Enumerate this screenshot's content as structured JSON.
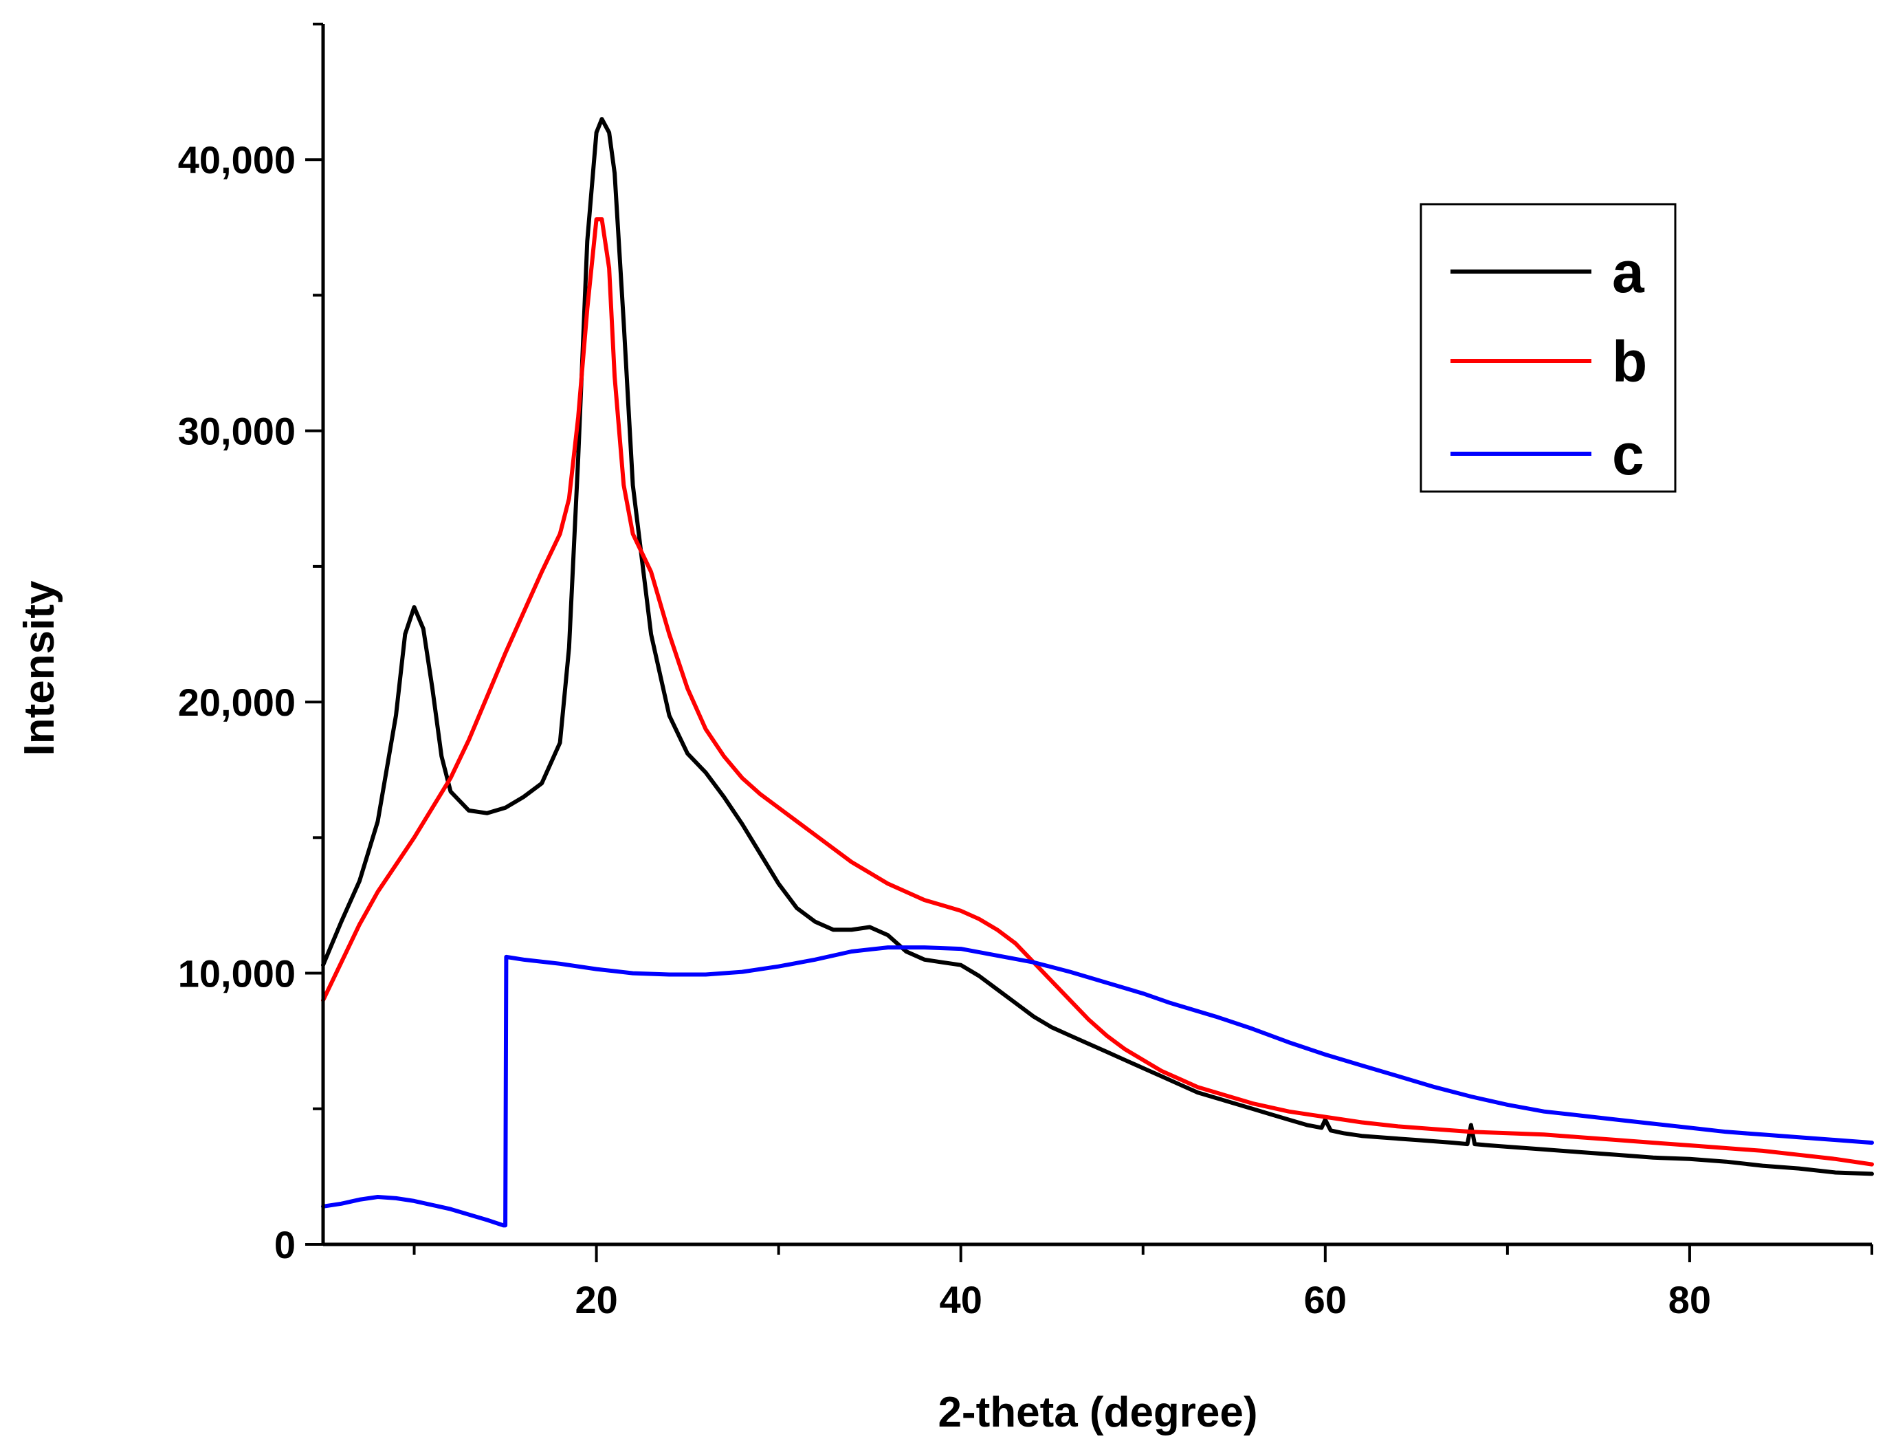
{
  "chart_data": {
    "type": "line",
    "title": "",
    "xlabel": "2-theta (degree)",
    "ylabel": "Intensity",
    "xlim": [
      5,
      90
    ],
    "ylim": [
      0,
      45000
    ],
    "x_ticks": [
      20,
      40,
      60,
      80
    ],
    "x_tick_labels": [
      "20",
      "40",
      "60",
      "80"
    ],
    "y_ticks": [
      0,
      10000,
      20000,
      30000,
      40000
    ],
    "y_tick_labels": [
      "0",
      "10,000",
      "20,000",
      "30,000",
      "40,000"
    ],
    "grid": false,
    "legend_position": "top-right",
    "series": [
      {
        "name": "a",
        "color": "#000000",
        "points": [
          [
            5,
            10300
          ],
          [
            6,
            11900
          ],
          [
            7,
            13400
          ],
          [
            8,
            15600
          ],
          [
            9,
            19500
          ],
          [
            9.5,
            22500
          ],
          [
            10,
            23500
          ],
          [
            10.5,
            22700
          ],
          [
            11,
            20500
          ],
          [
            11.5,
            18000
          ],
          [
            12,
            16700
          ],
          [
            13,
            16000
          ],
          [
            14,
            15900
          ],
          [
            15,
            16100
          ],
          [
            16,
            16500
          ],
          [
            17,
            17000
          ],
          [
            18,
            18500
          ],
          [
            18.5,
            22000
          ],
          [
            19,
            29000
          ],
          [
            19.5,
            37000
          ],
          [
            20,
            41000
          ],
          [
            20.3,
            41500
          ],
          [
            20.7,
            41000
          ],
          [
            21,
            39500
          ],
          [
            21.5,
            34000
          ],
          [
            22,
            28000
          ],
          [
            23,
            22500
          ],
          [
            24,
            19500
          ],
          [
            25,
            18100
          ],
          [
            26,
            17400
          ],
          [
            27,
            16500
          ],
          [
            28,
            15500
          ],
          [
            29,
            14400
          ],
          [
            30,
            13300
          ],
          [
            31,
            12400
          ],
          [
            32,
            11900
          ],
          [
            33,
            11600
          ],
          [
            34,
            11600
          ],
          [
            35,
            11700
          ],
          [
            36,
            11400
          ],
          [
            37,
            10800
          ],
          [
            38,
            10500
          ],
          [
            39,
            10400
          ],
          [
            40,
            10300
          ],
          [
            41,
            9900
          ],
          [
            42,
            9400
          ],
          [
            43,
            8900
          ],
          [
            44,
            8400
          ],
          [
            45,
            8000
          ],
          [
            46,
            7700
          ],
          [
            47,
            7400
          ],
          [
            48,
            7100
          ],
          [
            49,
            6800
          ],
          [
            50,
            6500
          ],
          [
            51,
            6200
          ],
          [
            52,
            5900
          ],
          [
            53,
            5600
          ],
          [
            54,
            5400
          ],
          [
            55,
            5200
          ],
          [
            56,
            5000
          ],
          [
            57,
            4800
          ],
          [
            58,
            4600
          ],
          [
            59,
            4400
          ],
          [
            59.8,
            4300
          ],
          [
            60,
            4600
          ],
          [
            60.3,
            4200
          ],
          [
            61,
            4100
          ],
          [
            62,
            4000
          ],
          [
            63,
            3950
          ],
          [
            64,
            3900
          ],
          [
            65,
            3850
          ],
          [
            66,
            3800
          ],
          [
            67,
            3750
          ],
          [
            67.8,
            3700
          ],
          [
            68,
            4400
          ],
          [
            68.2,
            3700
          ],
          [
            69,
            3650
          ],
          [
            70,
            3600
          ],
          [
            72,
            3500
          ],
          [
            74,
            3400
          ],
          [
            76,
            3300
          ],
          [
            78,
            3200
          ],
          [
            80,
            3150
          ],
          [
            82,
            3050
          ],
          [
            84,
            2900
          ],
          [
            86,
            2800
          ],
          [
            88,
            2650
          ],
          [
            90,
            2600
          ]
        ]
      },
      {
        "name": "b",
        "color": "#ff0000",
        "points": [
          [
            5,
            9000
          ],
          [
            6,
            10400
          ],
          [
            7,
            11800
          ],
          [
            8,
            13000
          ],
          [
            9,
            14000
          ],
          [
            10,
            15000
          ],
          [
            11,
            16100
          ],
          [
            12,
            17200
          ],
          [
            13,
            18600
          ],
          [
            14,
            20200
          ],
          [
            15,
            21800
          ],
          [
            16,
            23300
          ],
          [
            17,
            24800
          ],
          [
            18,
            26200
          ],
          [
            18.5,
            27500
          ],
          [
            19,
            30500
          ],
          [
            19.5,
            34500
          ],
          [
            20,
            37800
          ],
          [
            20.3,
            37800
          ],
          [
            20.7,
            36000
          ],
          [
            21,
            32000
          ],
          [
            21.5,
            28000
          ],
          [
            22,
            26200
          ],
          [
            23,
            24800
          ],
          [
            24,
            22500
          ],
          [
            25,
            20500
          ],
          [
            26,
            19000
          ],
          [
            27,
            18000
          ],
          [
            28,
            17200
          ],
          [
            29,
            16600
          ],
          [
            30,
            16100
          ],
          [
            31,
            15600
          ],
          [
            32,
            15100
          ],
          [
            33,
            14600
          ],
          [
            34,
            14100
          ],
          [
            35,
            13700
          ],
          [
            36,
            13300
          ],
          [
            37,
            13000
          ],
          [
            38,
            12700
          ],
          [
            39,
            12500
          ],
          [
            40,
            12300
          ],
          [
            41,
            12000
          ],
          [
            42,
            11600
          ],
          [
            43,
            11100
          ],
          [
            44,
            10400
          ],
          [
            45,
            9700
          ],
          [
            46,
            9000
          ],
          [
            47,
            8300
          ],
          [
            48,
            7700
          ],
          [
            49,
            7200
          ],
          [
            50,
            6800
          ],
          [
            51,
            6400
          ],
          [
            52,
            6100
          ],
          [
            53,
            5800
          ],
          [
            54,
            5600
          ],
          [
            55,
            5400
          ],
          [
            56,
            5200
          ],
          [
            57,
            5050
          ],
          [
            58,
            4900
          ],
          [
            59,
            4800
          ],
          [
            60,
            4700
          ],
          [
            62,
            4500
          ],
          [
            64,
            4350
          ],
          [
            66,
            4250
          ],
          [
            68,
            4150
          ],
          [
            70,
            4100
          ],
          [
            72,
            4050
          ],
          [
            74,
            3950
          ],
          [
            76,
            3850
          ],
          [
            78,
            3750
          ],
          [
            80,
            3650
          ],
          [
            82,
            3550
          ],
          [
            84,
            3450
          ],
          [
            86,
            3300
          ],
          [
            88,
            3150
          ],
          [
            90,
            2950
          ]
        ]
      },
      {
        "name": "c",
        "color": "#0000ff",
        "points": [
          [
            5,
            1400
          ],
          [
            6,
            1500
          ],
          [
            7,
            1650
          ],
          [
            8,
            1750
          ],
          [
            9,
            1700
          ],
          [
            10,
            1600
          ],
          [
            11,
            1450
          ],
          [
            12,
            1300
          ],
          [
            13,
            1100
          ],
          [
            14,
            900
          ],
          [
            14.9,
            700
          ],
          [
            15,
            700
          ],
          [
            15.05,
            10600
          ],
          [
            16,
            10500
          ],
          [
            18,
            10350
          ],
          [
            20,
            10150
          ],
          [
            22,
            10000
          ],
          [
            24,
            9950
          ],
          [
            26,
            9950
          ],
          [
            28,
            10050
          ],
          [
            30,
            10250
          ],
          [
            32,
            10500
          ],
          [
            34,
            10800
          ],
          [
            36,
            10950
          ],
          [
            38,
            10950
          ],
          [
            40,
            10900
          ],
          [
            42,
            10650
          ],
          [
            44,
            10400
          ],
          [
            46,
            10050
          ],
          [
            48,
            9650
          ],
          [
            50,
            9250
          ],
          [
            51.5,
            8900
          ],
          [
            52,
            8800
          ],
          [
            54,
            8400
          ],
          [
            56,
            7950
          ],
          [
            58,
            7450
          ],
          [
            60,
            7000
          ],
          [
            62,
            6600
          ],
          [
            64,
            6200
          ],
          [
            66,
            5800
          ],
          [
            68,
            5450
          ],
          [
            70,
            5150
          ],
          [
            72,
            4900
          ],
          [
            74,
            4750
          ],
          [
            76,
            4600
          ],
          [
            78,
            4450
          ],
          [
            80,
            4300
          ],
          [
            82,
            4150
          ],
          [
            84,
            4050
          ],
          [
            86,
            3950
          ],
          [
            88,
            3850
          ],
          [
            90,
            3750
          ]
        ]
      }
    ]
  }
}
